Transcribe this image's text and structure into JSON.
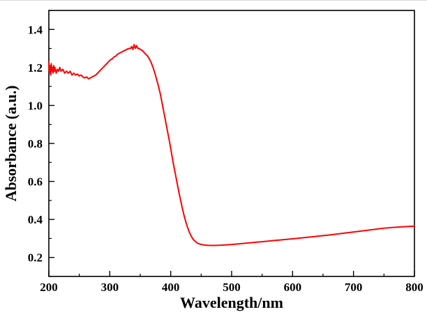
{
  "figure": {
    "background": "#ffffff",
    "axis_color": "#000000",
    "line_color": "#ff0000"
  },
  "chart_data": {
    "type": "line",
    "title": "",
    "xlabel": "Wavelength/nm",
    "ylabel": "Absorbance (a.u.)",
    "xlim": [
      200,
      800
    ],
    "ylim": [
      0.1,
      1.5
    ],
    "x_ticks": [
      200,
      300,
      400,
      500,
      600,
      700,
      800
    ],
    "y_ticks": [
      0.2,
      0.4,
      0.6,
      0.8,
      1.0,
      1.2,
      1.4
    ],
    "x_minor_step": 50,
    "y_minor_step": 0.1,
    "grid": false,
    "legend": "none",
    "series": [
      {
        "name": "absorbance",
        "color": "#ff0000",
        "points": [
          [
            200,
            1.23
          ],
          [
            201,
            1.17
          ],
          [
            202,
            1.21
          ],
          [
            203,
            1.16
          ],
          [
            204,
            1.22
          ],
          [
            205,
            1.18
          ],
          [
            206,
            1.2
          ],
          [
            207,
            1.17
          ],
          [
            208,
            1.21
          ],
          [
            209,
            1.18
          ],
          [
            210,
            1.2
          ],
          [
            212,
            1.17
          ],
          [
            214,
            1.19
          ],
          [
            216,
            1.18
          ],
          [
            218,
            1.2
          ],
          [
            220,
            1.18
          ],
          [
            223,
            1.19
          ],
          [
            226,
            1.17
          ],
          [
            229,
            1.18
          ],
          [
            232,
            1.17
          ],
          [
            235,
            1.18
          ],
          [
            238,
            1.16
          ],
          [
            241,
            1.17
          ],
          [
            244,
            1.16
          ],
          [
            247,
            1.165
          ],
          [
            250,
            1.155
          ],
          [
            253,
            1.16
          ],
          [
            256,
            1.15
          ],
          [
            259,
            1.145
          ],
          [
            262,
            1.15
          ],
          [
            265,
            1.14
          ],
          [
            268,
            1.145
          ],
          [
            271,
            1.15
          ],
          [
            274,
            1.155
          ],
          [
            277,
            1.16
          ],
          [
            280,
            1.17
          ],
          [
            283,
            1.18
          ],
          [
            286,
            1.19
          ],
          [
            289,
            1.2
          ],
          [
            292,
            1.21
          ],
          [
            295,
            1.22
          ],
          [
            298,
            1.23
          ],
          [
            301,
            1.24
          ],
          [
            304,
            1.245
          ],
          [
            307,
            1.255
          ],
          [
            310,
            1.26
          ],
          [
            313,
            1.27
          ],
          [
            316,
            1.275
          ],
          [
            319,
            1.28
          ],
          [
            322,
            1.285
          ],
          [
            325,
            1.29
          ],
          [
            328,
            1.295
          ],
          [
            331,
            1.3
          ],
          [
            334,
            1.3
          ],
          [
            336,
            1.31
          ],
          [
            338,
            1.295
          ],
          [
            340,
            1.32
          ],
          [
            342,
            1.3
          ],
          [
            344,
            1.315
          ],
          [
            346,
            1.3
          ],
          [
            348,
            1.3
          ],
          [
            350,
            1.295
          ],
          [
            353,
            1.29
          ],
          [
            356,
            1.28
          ],
          [
            359,
            1.27
          ],
          [
            362,
            1.26
          ],
          [
            365,
            1.245
          ],
          [
            368,
            1.225
          ],
          [
            371,
            1.2
          ],
          [
            374,
            1.17
          ],
          [
            377,
            1.135
          ],
          [
            380,
            1.1
          ],
          [
            383,
            1.06
          ],
          [
            386,
            1.01
          ],
          [
            389,
            0.96
          ],
          [
            392,
            0.91
          ],
          [
            395,
            0.86
          ],
          [
            398,
            0.81
          ],
          [
            401,
            0.755
          ],
          [
            404,
            0.7
          ],
          [
            407,
            0.65
          ],
          [
            410,
            0.6
          ],
          [
            413,
            0.55
          ],
          [
            416,
            0.505
          ],
          [
            419,
            0.46
          ],
          [
            422,
            0.42
          ],
          [
            425,
            0.385
          ],
          [
            428,
            0.355
          ],
          [
            431,
            0.33
          ],
          [
            434,
            0.31
          ],
          [
            437,
            0.295
          ],
          [
            440,
            0.285
          ],
          [
            444,
            0.275
          ],
          [
            448,
            0.27
          ],
          [
            452,
            0.267
          ],
          [
            456,
            0.265
          ],
          [
            460,
            0.264
          ],
          [
            465,
            0.263
          ],
          [
            470,
            0.263
          ],
          [
            480,
            0.264
          ],
          [
            490,
            0.266
          ],
          [
            500,
            0.268
          ],
          [
            510,
            0.271
          ],
          [
            520,
            0.274
          ],
          [
            530,
            0.277
          ],
          [
            540,
            0.28
          ],
          [
            550,
            0.283
          ],
          [
            560,
            0.286
          ],
          [
            570,
            0.289
          ],
          [
            580,
            0.292
          ],
          [
            590,
            0.295
          ],
          [
            600,
            0.298
          ],
          [
            615,
            0.303
          ],
          [
            630,
            0.308
          ],
          [
            645,
            0.313
          ],
          [
            660,
            0.318
          ],
          [
            675,
            0.324
          ],
          [
            690,
            0.33
          ],
          [
            705,
            0.336
          ],
          [
            720,
            0.342
          ],
          [
            735,
            0.348
          ],
          [
            750,
            0.354
          ],
          [
            765,
            0.358
          ],
          [
            780,
            0.361
          ],
          [
            800,
            0.365
          ]
        ]
      }
    ]
  }
}
